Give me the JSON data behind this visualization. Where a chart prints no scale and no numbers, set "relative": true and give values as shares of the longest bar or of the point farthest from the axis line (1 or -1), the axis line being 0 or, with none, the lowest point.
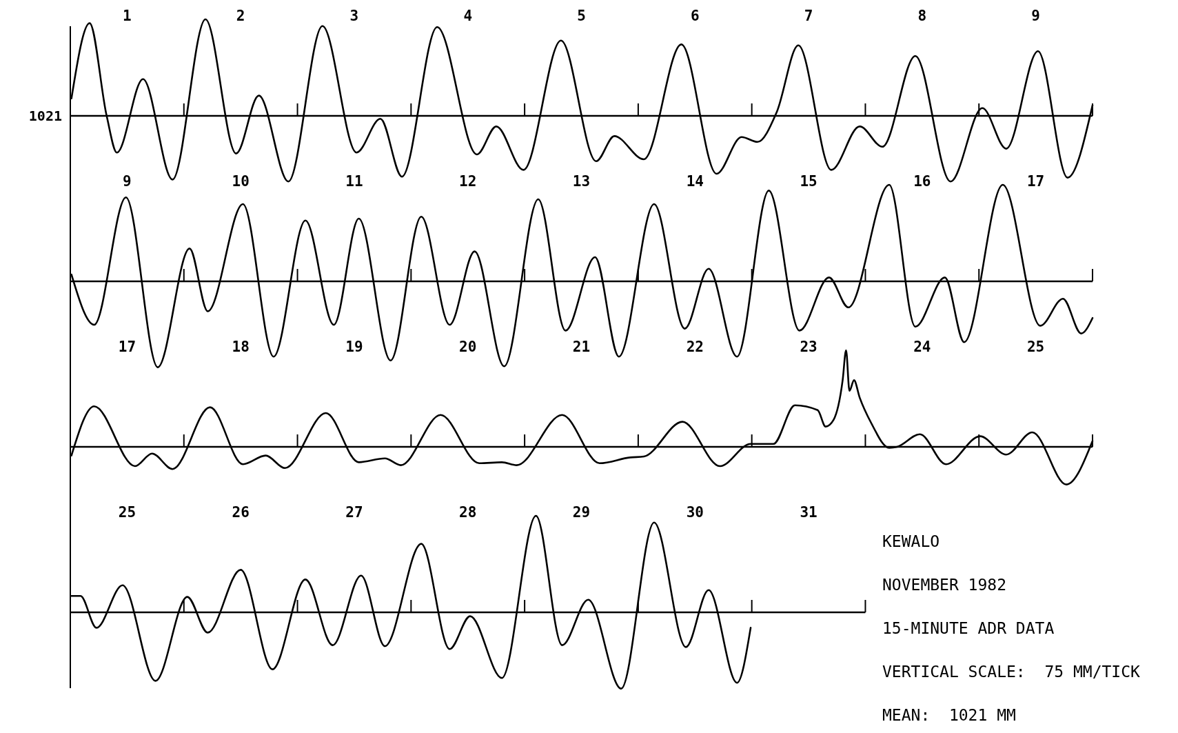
{
  "chart_data": [
    {
      "type": "line",
      "relative": true,
      "xlim": [
        0.5,
        9.5
      ],
      "xticks": [
        1,
        2,
        3,
        4,
        5,
        6,
        7,
        8,
        9
      ],
      "annotations": [
        "1021"
      ],
      "series": [
        {
          "color": "#000000",
          "x": [
            0.51,
            0.67,
            0.82,
            0.91,
            1.14,
            1.4,
            1.69,
            1.96,
            2.16,
            2.42,
            2.72,
            3.02,
            3.23,
            3.42,
            3.73,
            4.08,
            4.25,
            4.49,
            4.82,
            5.13,
            5.29,
            5.55,
            5.88,
            6.19,
            6.41,
            6.55,
            6.72,
            6.91,
            7.2,
            7.45,
            7.65,
            7.94,
            8.25,
            8.53,
            8.74,
            9.02,
            9.28,
            9.5
          ],
          "values": [
            0.18,
            0.96,
            0,
            -0.38,
            0.38,
            -0.66,
            1.0,
            -0.39,
            0.21,
            -0.68,
            0.93,
            -0.38,
            -0.03,
            -0.63,
            0.92,
            -0.4,
            -0.11,
            -0.56,
            0.78,
            -0.47,
            -0.21,
            -0.45,
            0.74,
            -0.6,
            -0.22,
            -0.27,
            0.04,
            0.73,
            -0.56,
            -0.11,
            -0.32,
            0.62,
            -0.68,
            0.08,
            -0.34,
            0.67,
            -0.64,
            0.11
          ]
        }
      ]
    },
    {
      "type": "line",
      "relative": true,
      "xlim": [
        8.5,
        17.5
      ],
      "xticks": [
        9,
        10,
        11,
        12,
        13,
        14,
        15,
        16,
        17
      ],
      "series": [
        {
          "color": "#000000",
          "x": [
            8.51,
            8.71,
            8.99,
            9.27,
            9.55,
            9.71,
            10.02,
            10.29,
            10.57,
            10.82,
            11.04,
            11.32,
            11.59,
            11.84,
            12.06,
            12.32,
            12.62,
            12.86,
            13.12,
            13.33,
            13.64,
            13.91,
            14.12,
            14.37,
            14.65,
            14.92,
            15.18,
            15.35,
            15.71,
            15.94,
            16.2,
            16.37,
            16.71,
            17.04,
            17.24,
            17.4,
            17.5
          ],
          "values": [
            0.07,
            -0.45,
            0.87,
            -0.89,
            0.34,
            -0.31,
            0.8,
            -0.78,
            0.63,
            -0.45,
            0.65,
            -0.82,
            0.67,
            -0.45,
            0.31,
            -0.88,
            0.85,
            -0.51,
            0.25,
            -0.78,
            0.8,
            -0.49,
            0.13,
            -0.78,
            0.94,
            -0.51,
            0.04,
            -0.27,
            1.0,
            -0.47,
            0.04,
            -0.63,
            1.0,
            -0.46,
            -0.18,
            -0.54,
            -0.38
          ]
        }
      ]
    },
    {
      "type": "line",
      "relative": true,
      "xlim": [
        16.5,
        25.5
      ],
      "xticks": [
        17,
        18,
        19,
        20,
        21,
        22,
        23,
        24,
        25
      ],
      "series": [
        {
          "color": "#000000",
          "x": [
            16.51,
            16.71,
            17.07,
            17.22,
            17.4,
            17.73,
            18.02,
            18.22,
            18.39,
            18.75,
            19.04,
            19.27,
            19.41,
            19.76,
            20.1,
            20.3,
            20.43,
            20.83,
            21.16,
            21.43,
            21.55,
            21.89,
            22.22,
            22.49,
            22.69,
            22.88,
            23.08,
            23.15,
            23.22,
            23.3,
            23.33,
            23.36,
            23.4,
            23.45,
            23.55,
            23.71,
            23.78,
            23.98,
            24.21,
            24.51,
            24.74,
            24.97,
            25.27,
            25.5
          ],
          "values": [
            -0.09,
            0.42,
            -0.2,
            -0.07,
            -0.23,
            0.41,
            -0.18,
            -0.09,
            -0.22,
            0.35,
            -0.16,
            -0.12,
            -0.19,
            0.33,
            -0.17,
            -0.16,
            -0.19,
            0.33,
            -0.17,
            -0.11,
            -0.1,
            0.26,
            -0.2,
            0.03,
            0.03,
            0.43,
            0.38,
            0.21,
            0.28,
            0.69,
            1.0,
            0.58,
            0.69,
            0.51,
            0.25,
            -0.01,
            0,
            0.13,
            -0.18,
            0.11,
            -0.08,
            0.15,
            -0.39,
            0.06
          ]
        }
      ]
    },
    {
      "type": "line",
      "relative": true,
      "xlim": [
        24.5,
        31.5
      ],
      "xticks": [
        25,
        26,
        27,
        28,
        29,
        30,
        31
      ],
      "annotations": [
        "KEWALO",
        "NOVEMBER 1982",
        "15-MINUTE ADR DATA",
        "VERTICAL SCALE:  75 MM/TICK",
        "MEAN:  1021 MM"
      ],
      "series": [
        {
          "color": "#000000",
          "x": [
            24.51,
            24.59,
            24.73,
            24.96,
            25.25,
            25.53,
            25.71,
            26.0,
            26.28,
            26.57,
            26.81,
            27.06,
            27.27,
            27.59,
            27.84,
            28.02,
            28.3,
            28.6,
            28.83,
            29.06,
            29.35,
            29.64,
            29.92,
            30.12,
            30.37,
            30.49
          ],
          "values": [
            0.17,
            0.17,
            -0.16,
            0.28,
            -0.71,
            0.16,
            -0.21,
            0.44,
            -0.59,
            0.34,
            -0.34,
            0.38,
            -0.35,
            0.71,
            -0.38,
            -0.04,
            -0.68,
            1.0,
            -0.34,
            0.13,
            -0.79,
            0.93,
            -0.36,
            0.23,
            -0.73,
            -0.16
          ]
        }
      ]
    }
  ]
}
